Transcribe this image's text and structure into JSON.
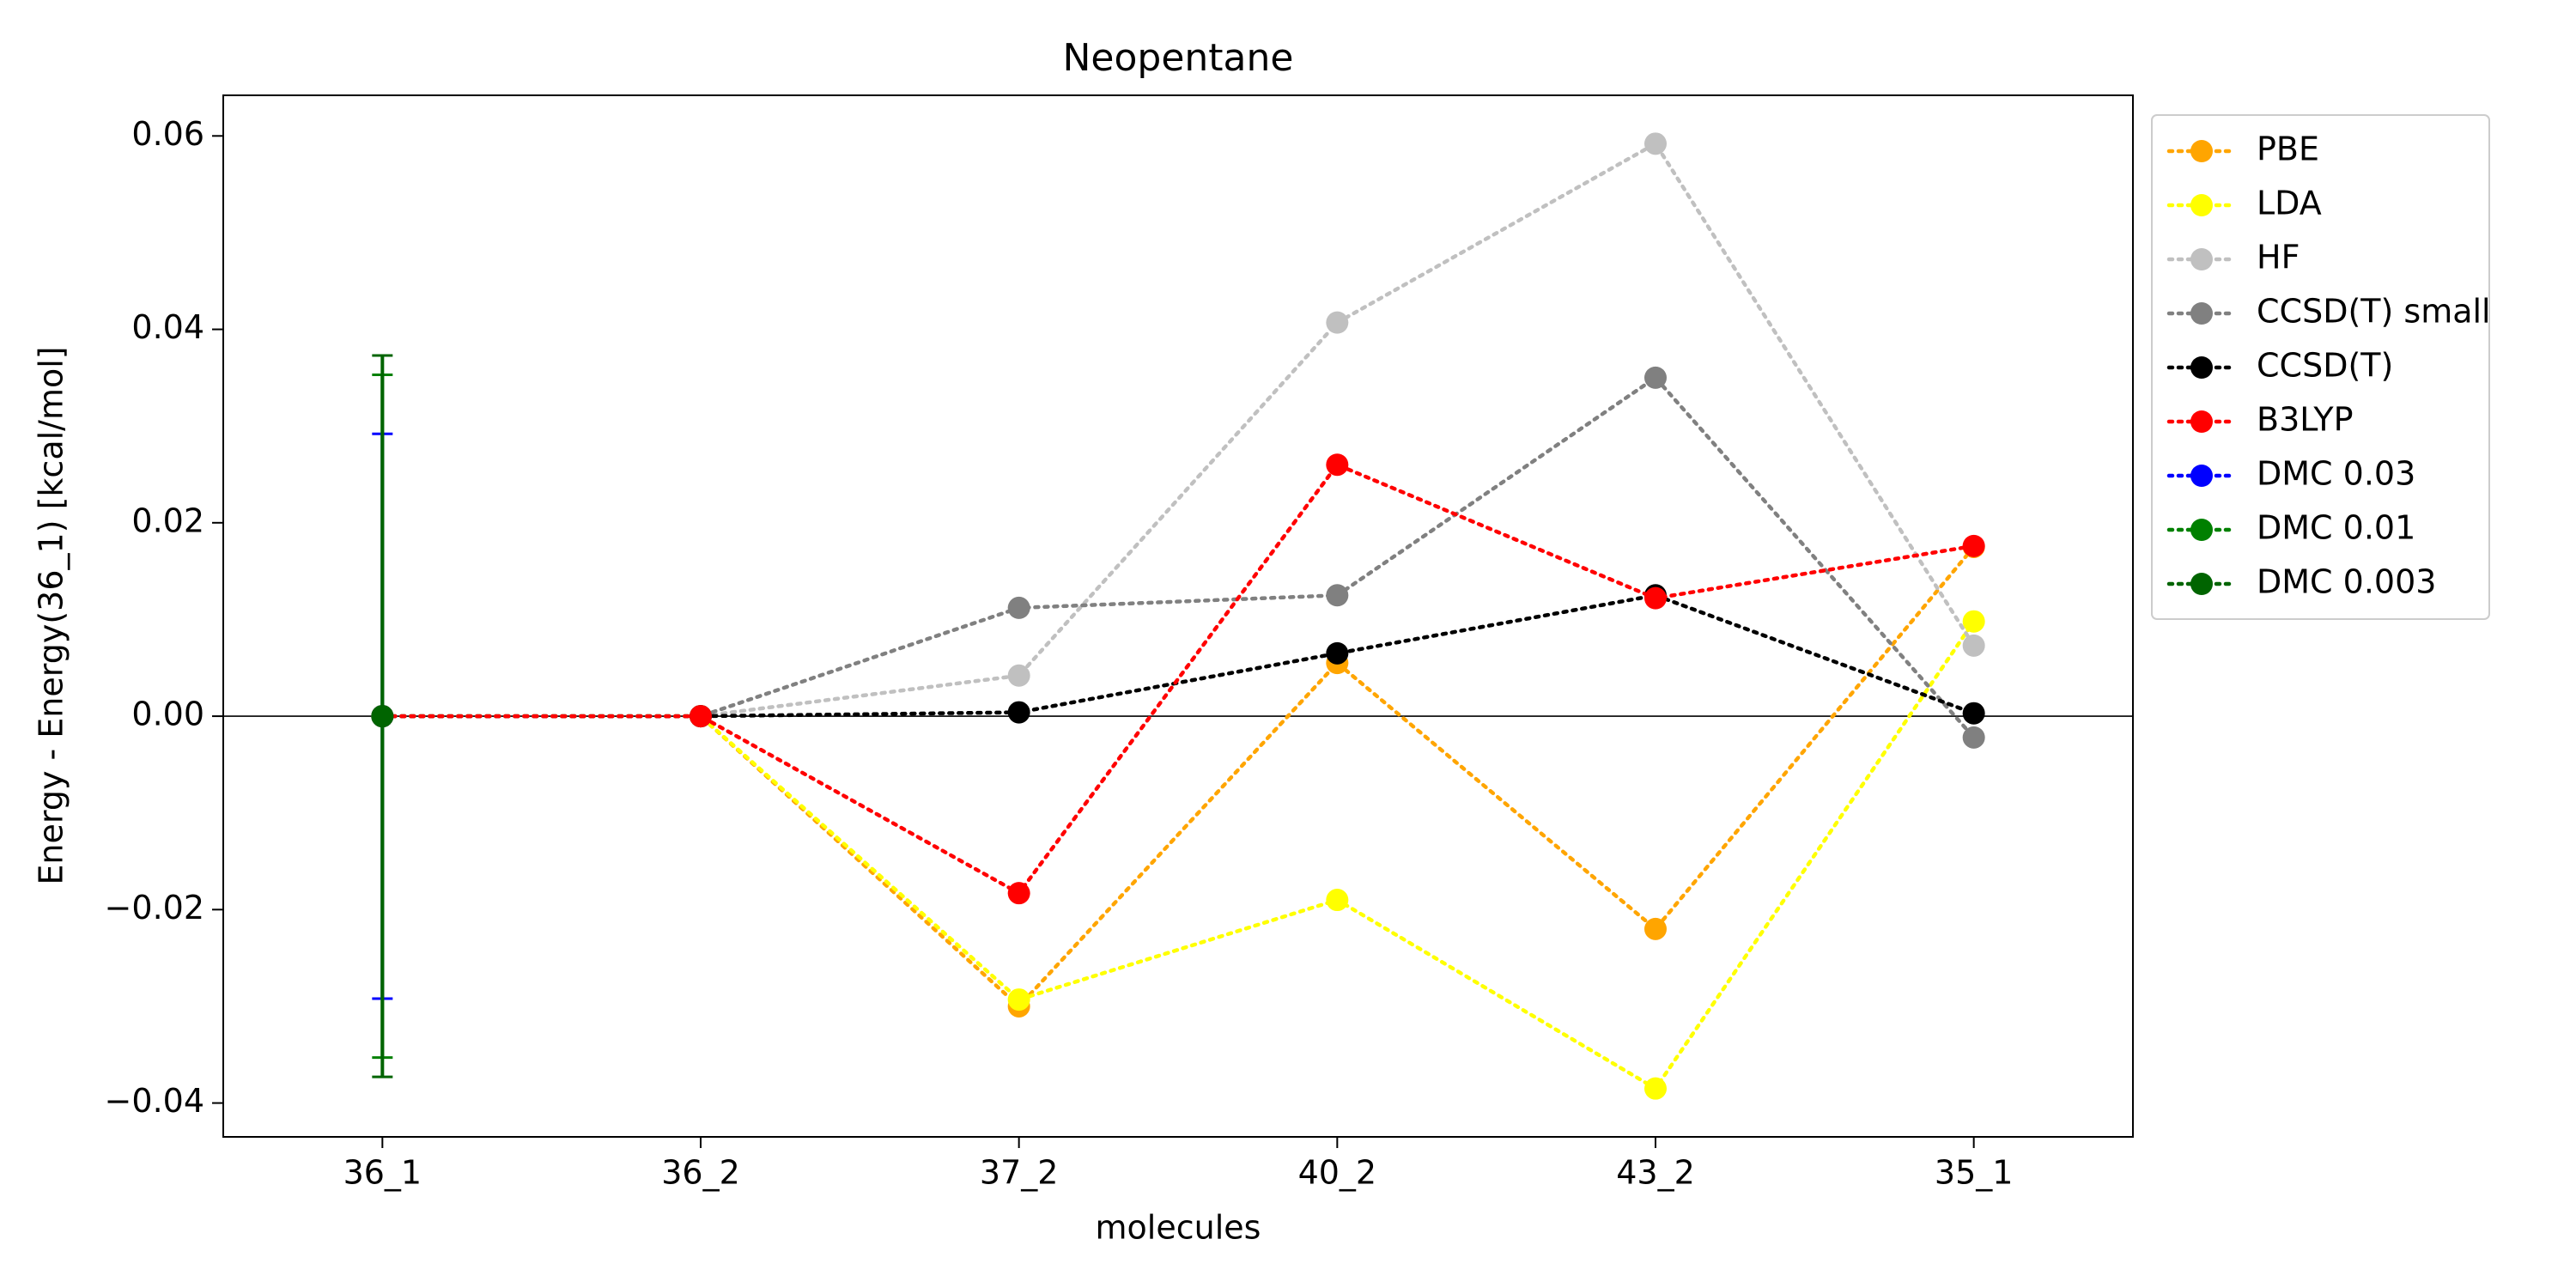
{
  "chart_data": {
    "type": "line",
    "title": "Neopentane",
    "xlabel": "molecules",
    "ylabel": "Energy - Energy(36_1) [kcal/mol]",
    "categories": [
      "36_1",
      "36_2",
      "37_2",
      "40_2",
      "43_2",
      "35_1"
    ],
    "ylim": [
      -0.0435,
      0.0642
    ],
    "yticks": [
      {
        "value": -0.04,
        "label": "−0.04"
      },
      {
        "value": -0.02,
        "label": "−0.02"
      },
      {
        "value": 0,
        "label": "0.00"
      },
      0.02,
      0.04,
      0.06
    ],
    "axhline": 0,
    "legend": "outside upper right",
    "series": [
      {
        "name": "PBE",
        "color": "#ffa500",
        "values": [
          0,
          0,
          -0.03,
          0.0055,
          -0.022,
          0.0175
        ]
      },
      {
        "name": "LDA",
        "color": "#ffff00",
        "values": [
          0,
          0,
          -0.0293,
          -0.019,
          -0.0385,
          0.0098
        ]
      },
      {
        "name": "HF",
        "color": "#c0c0c0",
        "values": [
          0,
          0,
          0.0042,
          0.0407,
          0.0592,
          0.0073
        ]
      },
      {
        "name": "CCSD(T) small",
        "color": "#808080",
        "values": [
          0,
          0,
          0.0112,
          0.0125,
          0.035,
          -0.0022
        ]
      },
      {
        "name": "CCSD(T)",
        "color": "#000000",
        "values": [
          0,
          0,
          0.0004,
          0.0065,
          0.0125,
          0.0003
        ]
      },
      {
        "name": "B3LYP",
        "color": "#ff0000",
        "values": [
          0,
          0,
          -0.0183,
          0.026,
          0.0122,
          0.0176
        ]
      },
      {
        "name": "DMC 0.03",
        "color": "#0000ff",
        "values": [
          0,
          null,
          null,
          null,
          null,
          null
        ],
        "errors": [
          0.0292,
          null,
          null,
          null,
          null,
          null
        ]
      },
      {
        "name": "DMC 0.01",
        "color": "#008000",
        "values": [
          0,
          null,
          null,
          null,
          null,
          null
        ],
        "errors": [
          0.0353,
          null,
          null,
          null,
          null,
          null
        ]
      },
      {
        "name": "DMC 0.003",
        "color": "#006400",
        "values": [
          0,
          null,
          null,
          null,
          null,
          null
        ],
        "errors": [
          0.0373,
          null,
          null,
          null,
          null,
          null
        ]
      }
    ]
  }
}
